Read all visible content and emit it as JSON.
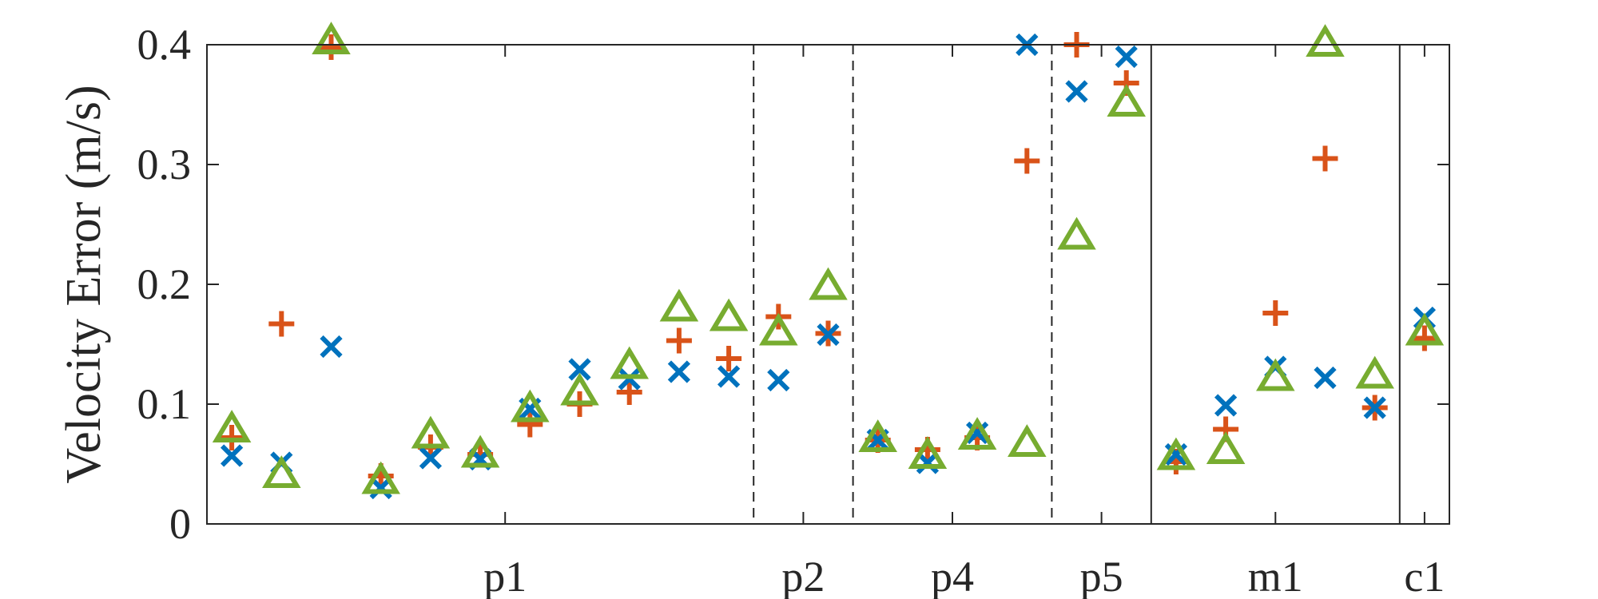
{
  "chart_data": {
    "type": "scatter",
    "title": "",
    "xlabel": "",
    "ylabel": "Velocity Error (m/s)",
    "xlim": [
      0.5,
      25.5
    ],
    "ylim": [
      0,
      0.4
    ],
    "yticks": [
      0,
      0.1,
      0.2,
      0.3,
      0.4
    ],
    "ytick_labels": [
      "0",
      "0.1",
      "0.2",
      "0.3",
      "0.4"
    ],
    "groups": [
      {
        "label": "p1",
        "center": 6.5
      },
      {
        "label": "p2",
        "center": 12.5
      },
      {
        "label": "p4",
        "center": 15.5
      },
      {
        "label": "p5",
        "center": 18.5
      },
      {
        "label": "m1",
        "center": 22.0
      },
      {
        "label": "c1",
        "center": 25.0
      }
    ],
    "separators": [
      {
        "x": 11.5,
        "style": "dashed"
      },
      {
        "x": 13.5,
        "style": "dashed"
      },
      {
        "x": 17.5,
        "style": "dashed"
      },
      {
        "x": 19.5,
        "style": "solid"
      },
      {
        "x": 24.5,
        "style": "solid"
      }
    ],
    "x": [
      1,
      2,
      3,
      4,
      5,
      6,
      7,
      8,
      9,
      10,
      11,
      12,
      13,
      14,
      15,
      16,
      17,
      18,
      19,
      20,
      21,
      22,
      23,
      24,
      25
    ],
    "series": [
      {
        "name": "plus",
        "marker": "+",
        "color": "#D95319",
        "values": [
          0.072,
          0.167,
          0.398,
          0.04,
          0.064,
          0.058,
          0.083,
          0.1,
          0.11,
          0.153,
          0.138,
          0.173,
          0.159,
          0.07,
          0.062,
          0.072,
          0.303,
          0.4,
          0.368,
          0.052,
          0.079,
          0.176,
          0.305,
          0.097,
          0.155
        ]
      },
      {
        "name": "cross",
        "marker": "x",
        "color": "#0072BD",
        "values": [
          0.057,
          0.051,
          0.148,
          0.03,
          0.055,
          0.054,
          0.096,
          0.129,
          0.121,
          0.127,
          0.123,
          0.12,
          0.158,
          0.07,
          0.051,
          0.076,
          0.4,
          0.361,
          0.39,
          0.058,
          0.099,
          0.131,
          0.122,
          0.097,
          0.172
        ]
      },
      {
        "name": "triangle",
        "marker": "^",
        "color": "#77AC30",
        "values": [
          0.078,
          0.04,
          0.402,
          0.035,
          0.073,
          0.057,
          0.095,
          0.109,
          0.131,
          0.179,
          0.171,
          0.159,
          0.197,
          0.07,
          0.056,
          0.072,
          0.066,
          0.239,
          0.35,
          0.055,
          0.06,
          0.121,
          0.4,
          0.123,
          0.159
        ]
      }
    ]
  }
}
